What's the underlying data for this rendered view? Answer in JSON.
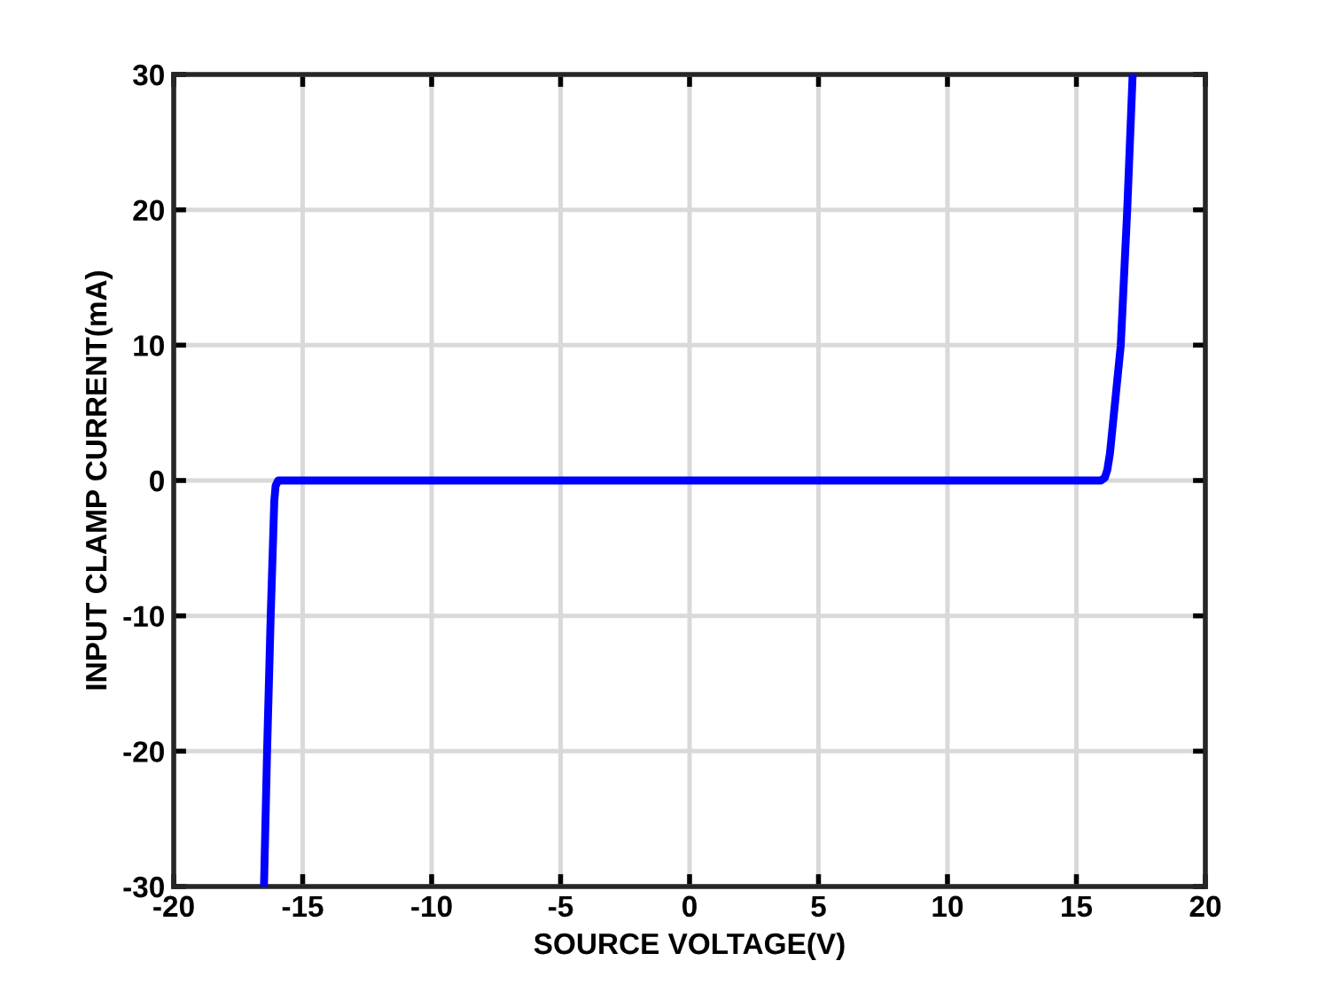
{
  "chart_data": {
    "type": "line",
    "xlabel": "SOURCE VOLTAGE(V)",
    "ylabel": "INPUT CLAMP CURRENT(mA)",
    "x": [
      -16.5,
      -16.38,
      -16.24,
      -16.1,
      -16.05,
      -15.95,
      -15.85,
      0,
      15.95,
      16.1,
      16.2,
      16.3,
      16.72,
      16.97,
      17.18
    ],
    "series": [
      {
        "color": "#0000ff",
        "values": [
          -30,
          -20,
          -10,
          -1.5,
          -0.4,
          0,
          0,
          0,
          0,
          0.2,
          0.8,
          2,
          10,
          20,
          30
        ]
      }
    ],
    "xlim": [
      -20,
      20
    ],
    "xticks": [
      -20,
      -15,
      -10,
      -5,
      0,
      5,
      10,
      15,
      20
    ],
    "ylim": [
      -30,
      30
    ],
    "yticks": [
      -30,
      -20,
      -10,
      0,
      10,
      20,
      30
    ],
    "grid": true,
    "legend": false,
    "marker": "none",
    "line_style": "solid"
  }
}
